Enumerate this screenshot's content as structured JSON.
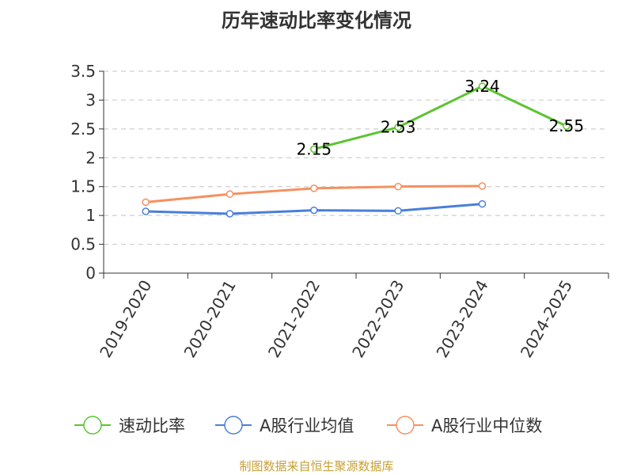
{
  "title": "历年速动比率变化情况",
  "source_note": "制图数据来自恒生聚源数据库",
  "chart_data": {
    "type": "line",
    "title": "历年速动比率变化情况",
    "categories": [
      "2019-2020",
      "2020-2021",
      "2021-2022",
      "2022-2023",
      "2023-2024",
      "2024-2025"
    ],
    "ylim": [
      0,
      3.5
    ],
    "yticks": [
      0,
      0.5,
      1,
      1.5,
      2,
      2.5,
      3,
      3.5
    ],
    "ytick_labels": [
      "0",
      "0.5",
      "1",
      "1.5",
      "2",
      "2.5",
      "3",
      "3.5"
    ],
    "grid": true,
    "legend_position": "bottom",
    "series": [
      {
        "name": "速动比率",
        "color": "#5cc431",
        "show_labels": true,
        "values": [
          null,
          null,
          2.15,
          2.53,
          3.24,
          2.55
        ],
        "labels": [
          null,
          null,
          "2.15",
          "2.53",
          "3.24",
          "2.55"
        ]
      },
      {
        "name": "A股行业均值",
        "color": "#4a7fd8",
        "show_labels": false,
        "values": [
          1.07,
          1.03,
          1.09,
          1.08,
          1.2,
          null
        ]
      },
      {
        "name": "A股行业中位数",
        "color": "#f59060",
        "show_labels": false,
        "values": [
          1.23,
          1.37,
          1.47,
          1.5,
          1.51,
          null
        ]
      }
    ]
  }
}
